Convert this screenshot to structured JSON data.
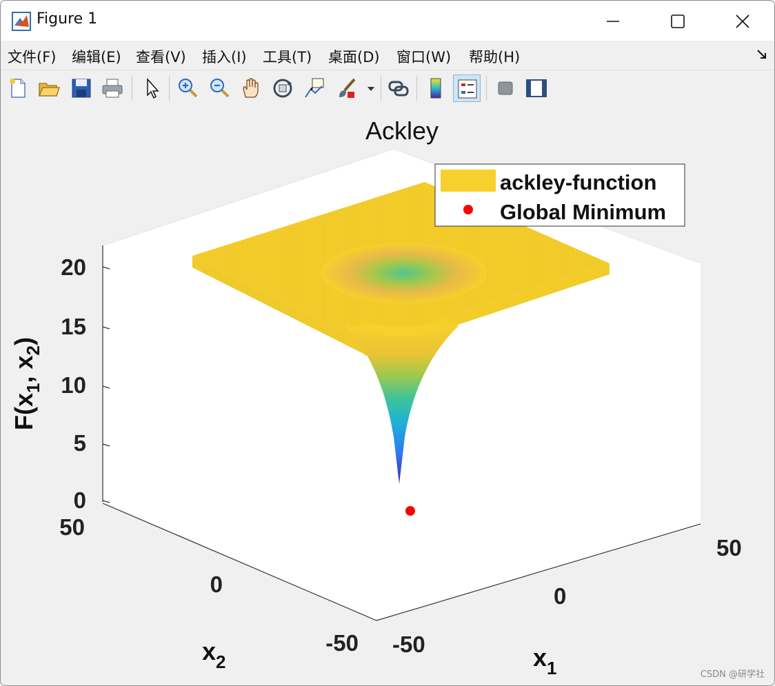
{
  "window": {
    "title": "Figure 1"
  },
  "menu": [
    "文件(F)",
    "编辑(E)",
    "查看(V)",
    "插入(I)",
    "工具(T)",
    "桌面(D)",
    "窗口(W)",
    "帮助(H)"
  ],
  "toolbar_icons": [
    "new-figure-icon",
    "open-file-icon",
    "save-icon",
    "print-icon",
    "pointer-icon",
    "zoom-in-icon",
    "zoom-out-icon",
    "pan-icon",
    "rotate-3d-icon",
    "data-cursor-icon",
    "brush-icon",
    "brush-dropdown-icon",
    "link-plot-icon",
    "colorbar-icon",
    "legend-icon",
    "hide-plot-tools-icon",
    "show-plot-tools-icon"
  ],
  "watermark": "CSDN @研学社",
  "chart_data": {
    "type": "surface",
    "title": "Ackley",
    "xlabel": "x1",
    "ylabel": "x2",
    "zlabel": "F(x1, x2)",
    "xlim": [
      -50,
      50
    ],
    "ylim": [
      -50,
      50
    ],
    "zlim": [
      0,
      22
    ],
    "x_ticks": [
      "-50",
      "0",
      "50"
    ],
    "y_ticks": [
      "-50",
      "0",
      "50"
    ],
    "z_ticks": [
      "0",
      "5",
      "10",
      "15",
      "20"
    ],
    "legend_position": "top-right",
    "series": [
      {
        "name": "ackley-function",
        "kind": "surface",
        "color": "#f6d12d",
        "plateau_z": 21.5,
        "min_z": 0
      },
      {
        "name": "Global Minimum",
        "kind": "marker",
        "color": "#ff0000",
        "x": 0,
        "y": 0,
        "z": 0
      }
    ],
    "colormap": [
      "#3e26a8",
      "#2f74f5",
      "#1fb0d8",
      "#3fc49a",
      "#9cc84f",
      "#f4d02f",
      "#f9fb15"
    ]
  }
}
